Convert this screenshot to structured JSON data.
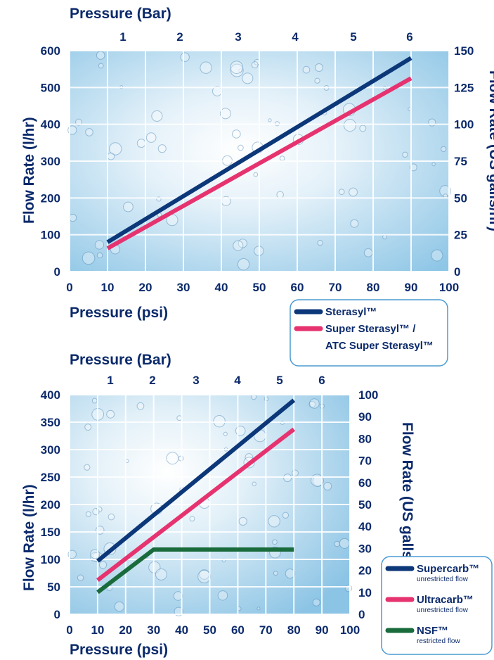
{
  "chart_data": [
    {
      "type": "line",
      "top_axis_title": "Pressure (Bar)",
      "xlabel": "Pressure (psi)",
      "ylabel": "Flow Rate (l/hr)",
      "y2label": "Flow Rate (US galls/hr)",
      "x_ticks": [
        "0",
        "10",
        "20",
        "30",
        "40",
        "50",
        "60",
        "70",
        "80",
        "90",
        "100"
      ],
      "x_top_ticks": [
        "1",
        "2",
        "3",
        "4",
        "5",
        "6"
      ],
      "y_ticks": [
        "0",
        "100",
        "200",
        "300",
        "400",
        "500",
        "600"
      ],
      "y2_ticks": [
        "0",
        "25",
        "50",
        "75",
        "100",
        "125",
        "150"
      ],
      "xlim": [
        0,
        100
      ],
      "ylim": [
        0,
        600
      ],
      "grid": true,
      "legend_position": "bottom-right",
      "series": [
        {
          "name": "Sterasyl™",
          "color": "#0c3779",
          "x": [
            10,
            90
          ],
          "y": [
            80,
            580
          ]
        },
        {
          "name": "Super Sterasyl™ / ATC Super Sterasyl™",
          "color": "#e6336f",
          "x": [
            10,
            90
          ],
          "y": [
            63,
            525
          ]
        }
      ],
      "legend": [
        {
          "name": "Sterasyl™",
          "color": "#0c3779"
        },
        {
          "name": "Super Sterasyl™ /",
          "name2": "ATC Super Sterasyl™",
          "color": "#e6336f"
        }
      ]
    },
    {
      "type": "line",
      "top_axis_title": "Pressure (Bar)",
      "xlabel": "Pressure (psi)",
      "ylabel": "Flow Rate (l/hr)",
      "y2label": "Flow Rate (US galls/hr)",
      "x_ticks": [
        "0",
        "10",
        "20",
        "30",
        "40",
        "50",
        "60",
        "70",
        "80",
        "90",
        "100"
      ],
      "x_top_ticks": [
        "1",
        "2",
        "3",
        "4",
        "5",
        "6"
      ],
      "y_ticks": [
        "0",
        "50",
        "100",
        "150",
        "200",
        "250",
        "300",
        "350",
        "400"
      ],
      "y2_ticks": [
        "0",
        "10",
        "20",
        "30",
        "40",
        "50",
        "60",
        "70",
        "80",
        "90",
        "100"
      ],
      "xlim": [
        0,
        100
      ],
      "ylim": [
        0,
        400
      ],
      "grid": true,
      "legend_position": "bottom-right",
      "series": [
        {
          "name": "Supercarb™",
          "color": "#0c3779",
          "x": [
            10,
            80
          ],
          "y": [
            97,
            390
          ]
        },
        {
          "name": "Ultracarb™",
          "color": "#e6336f",
          "x": [
            10,
            80
          ],
          "y": [
            62,
            337
          ]
        },
        {
          "name": "NSF™",
          "color": "#1a6b3c",
          "x": [
            10,
            30,
            80
          ],
          "y": [
            40,
            118,
            118
          ]
        }
      ],
      "legend": [
        {
          "name": "Supercarb™",
          "sub": "unrestricted flow",
          "color": "#0c3779"
        },
        {
          "name": "Ultracarb™",
          "sub": "unrestricted flow",
          "color": "#e6336f"
        },
        {
          "name": "NSF™",
          "sub": "restricted flow",
          "color": "#1a6b3c"
        }
      ]
    }
  ]
}
